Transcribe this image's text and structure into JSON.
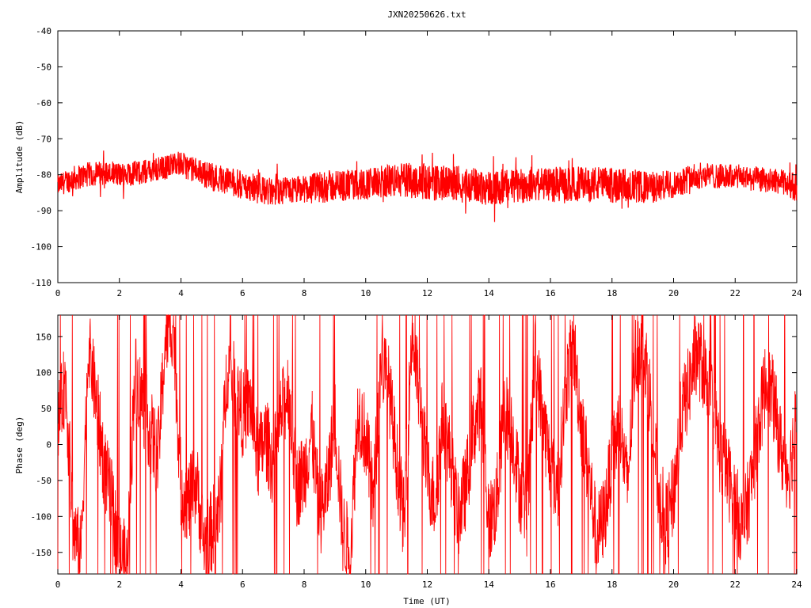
{
  "page": {
    "title": "JXN20250626.txt"
  },
  "colors": {
    "signal": "#ff0000",
    "axis": "#000000",
    "background": "#ffffff"
  },
  "chart_data": [
    {
      "type": "line",
      "title": "JXN20250626.txt",
      "xlabel": "",
      "ylabel": "Amplitude (dB)",
      "xlim": [
        0,
        24
      ],
      "ylim": [
        -110,
        -40
      ],
      "x_ticks": [
        "0",
        "2",
        "4",
        "6",
        "8",
        "10",
        "12",
        "14",
        "16",
        "18",
        "20",
        "22",
        "24"
      ],
      "y_ticks": [
        "-40",
        "-50",
        "-60",
        "-70",
        "-80",
        "-90",
        "-100",
        "-110"
      ],
      "grid": false,
      "series": [
        {
          "color": "#ff0000",
          "x": [
            0,
            0.5,
            1,
            1.5,
            2,
            2.5,
            3,
            3.5,
            3.8,
            4,
            4.5,
            5,
            5.5,
            6,
            6.5,
            7,
            7.5,
            8,
            8.5,
            9,
            9.5,
            10,
            10.5,
            11,
            11.5,
            12,
            12.5,
            13,
            13.5,
            14,
            14.5,
            15,
            15.5,
            16,
            16.5,
            17,
            17.5,
            18,
            18.5,
            19,
            19.5,
            20,
            20.5,
            21,
            21.5,
            22,
            22.5,
            23,
            23.5,
            24
          ],
          "y": [
            -83,
            -81,
            -80,
            -79.5,
            -80,
            -79.5,
            -79,
            -78,
            -76.5,
            -77,
            -79,
            -80.5,
            -81.5,
            -83,
            -84,
            -85,
            -84.5,
            -84,
            -83.5,
            -83,
            -83,
            -82.5,
            -82,
            -81.5,
            -81.5,
            -82,
            -82.5,
            -82.5,
            -83,
            -83.5,
            -83.5,
            -83,
            -82.5,
            -82.5,
            -83,
            -82.5,
            -82.5,
            -83,
            -83,
            -83.5,
            -83.5,
            -82.5,
            -81,
            -80,
            -80.5,
            -80.5,
            -81,
            -81.5,
            -82,
            -83.5
          ],
          "band": [
            3,
            3.5,
            3.5,
            3.5,
            3.5,
            3.5,
            3.5,
            3.5,
            3,
            3.5,
            3.5,
            4,
            4,
            4,
            4,
            4,
            4,
            4,
            4.5,
            4.5,
            4.5,
            4.5,
            4.5,
            5,
            5,
            5,
            5,
            5,
            5,
            5,
            5,
            5,
            5,
            5,
            5,
            5,
            5,
            5,
            5,
            4.5,
            4.5,
            4,
            4,
            3.5,
            3.5,
            3.5,
            3.5,
            3.5,
            3.5,
            4
          ]
        }
      ]
    },
    {
      "type": "line",
      "title": "",
      "xlabel": "Time (UT)",
      "ylabel": "Phase (deg)",
      "xlim": [
        0,
        24
      ],
      "ylim": [
        -180,
        180
      ],
      "x_ticks": [
        "0",
        "2",
        "4",
        "6",
        "8",
        "10",
        "12",
        "14",
        "16",
        "18",
        "20",
        "22",
        "24"
      ],
      "y_ticks": [
        "150",
        "100",
        "50",
        "0",
        "-50",
        "-100",
        "-150"
      ],
      "grid": false,
      "series": [
        {
          "color": "#ff0000",
          "x": [
            0,
            0.25,
            0.5,
            0.75,
            1,
            1.25,
            1.5,
            1.75,
            2,
            2.25,
            2.5,
            2.75,
            3,
            3.25,
            3.5,
            3.75,
            4,
            4.25,
            4.5,
            4.75,
            5,
            5.25,
            5.5,
            5.75,
            6,
            6.25,
            6.5,
            6.75,
            7,
            7.25,
            7.5,
            7.75,
            8,
            8.25,
            8.5,
            8.75,
            9,
            9.25,
            9.5,
            9.75,
            10,
            10.25,
            10.5,
            10.75,
            11,
            11.25,
            11.5,
            11.75,
            12,
            12.25,
            12.5,
            12.75,
            13,
            13.25,
            13.5,
            13.75,
            14,
            14.25,
            14.5,
            14.75,
            15,
            15.25,
            15.5,
            15.75,
            16,
            16.25,
            16.5,
            16.75,
            17,
            17.25,
            17.5,
            17.75,
            18,
            18.25,
            18.5,
            18.75,
            19,
            19.25,
            19.5,
            19.75,
            20,
            20.25,
            20.5,
            20.75,
            21,
            21.25,
            21.5,
            21.75,
            22,
            22.25,
            22.5,
            22.75,
            23,
            23.25,
            23.5,
            23.75,
            24
          ],
          "y": [
            30,
            90,
            -120,
            -150,
            140,
            60,
            -30,
            -80,
            -150,
            -170,
            100,
            60,
            20,
            -20,
            150,
            170,
            -60,
            -80,
            -50,
            -140,
            -120,
            -90,
            110,
            80,
            40,
            60,
            -20,
            10,
            -30,
            40,
            80,
            -60,
            -40,
            20,
            -100,
            -60,
            40,
            -120,
            -150,
            50,
            10,
            -80,
            120,
            80,
            -20,
            -110,
            160,
            60,
            -40,
            -80,
            40,
            -20,
            -100,
            -60,
            20,
            60,
            -110,
            -80,
            50,
            20,
            -60,
            -100,
            120,
            40,
            -30,
            -60,
            80,
            140,
            30,
            -40,
            -130,
            -100,
            -20,
            30,
            -60,
            120,
            150,
            60,
            -60,
            -110,
            -70,
            40,
            80,
            130,
            100,
            60,
            -10,
            -40,
            -80,
            -120,
            -60,
            20,
            90,
            60,
            -10,
            -40,
            40
          ],
          "band": [
            50,
            60,
            60,
            50,
            50,
            60,
            60,
            60,
            60,
            60,
            60,
            60,
            60,
            60,
            60,
            60,
            60,
            60,
            60,
            60,
            60,
            60,
            60,
            60,
            60,
            60,
            60,
            60,
            60,
            60,
            60,
            60,
            60,
            60,
            60,
            60,
            60,
            60,
            60,
            60,
            60,
            60,
            60,
            60,
            60,
            60,
            60,
            60,
            60,
            60,
            60,
            60,
            60,
            60,
            60,
            60,
            60,
            60,
            60,
            60,
            60,
            60,
            60,
            60,
            60,
            60,
            60,
            60,
            60,
            60,
            60,
            60,
            60,
            60,
            60,
            60,
            60,
            60,
            60,
            60,
            60,
            60,
            60,
            60,
            60,
            60,
            60,
            60,
            60,
            60,
            60,
            60,
            60,
            60,
            60,
            60,
            60
          ]
        }
      ]
    }
  ]
}
